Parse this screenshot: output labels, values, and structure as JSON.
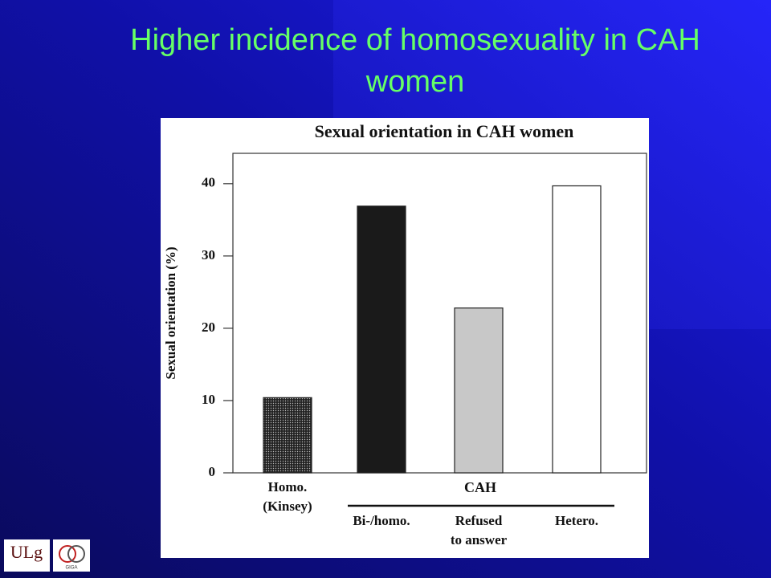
{
  "slide_title": [
    "Higher incidence of homosexuality in CAH",
    "women"
  ],
  "chart_data": {
    "type": "bar",
    "title": "Sexual orientation in CAH women",
    "y_label": "Sexual orientation (%)",
    "categories": [
      [
        "Homo.",
        "(Kinsey)"
      ],
      [
        "Bi-/homo."
      ],
      [
        "Refused",
        "to answer"
      ],
      [
        "Hetero."
      ]
    ],
    "values": [
      10.4,
      36.9,
      22.8,
      39.7
    ],
    "colors": [
      "#3a3a3a",
      "#1a1a1a",
      "#c8c8c8",
      "#ffffff"
    ],
    "group_label": "CAH",
    "ylim": [
      0,
      44.2
    ],
    "yticks": [
      0,
      10,
      20,
      30,
      40
    ]
  },
  "logos": [
    "ULg",
    "GIGA"
  ]
}
